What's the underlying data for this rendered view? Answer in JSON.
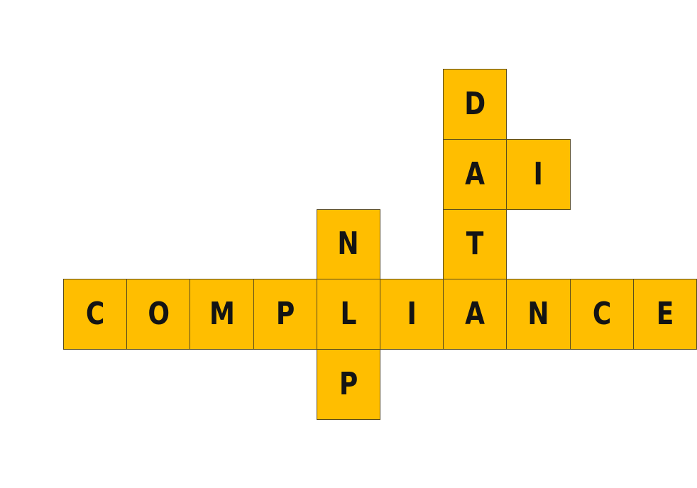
{
  "puzzle": {
    "tile_color": "#FFBE00",
    "border_color": "#5a4a1e",
    "letter_color": "#141414",
    "words": [
      {
        "word": "COMPLIANCE",
        "direction": "across",
        "row": 3,
        "col": 0
      },
      {
        "word": "NLP",
        "direction": "down",
        "row": 2,
        "col": 4
      },
      {
        "word": "DATA",
        "direction": "down",
        "row": 0,
        "col": 6
      },
      {
        "word": "AI",
        "direction": "across",
        "row": 1,
        "col": 6
      }
    ],
    "cells": [
      {
        "row": 0,
        "col": 6,
        "letter": "D"
      },
      {
        "row": 1,
        "col": 6,
        "letter": "A"
      },
      {
        "row": 1,
        "col": 7,
        "letter": "I"
      },
      {
        "row": 2,
        "col": 4,
        "letter": "N"
      },
      {
        "row": 2,
        "col": 6,
        "letter": "T"
      },
      {
        "row": 3,
        "col": 0,
        "letter": "C"
      },
      {
        "row": 3,
        "col": 1,
        "letter": "O"
      },
      {
        "row": 3,
        "col": 2,
        "letter": "M"
      },
      {
        "row": 3,
        "col": 3,
        "letter": "P"
      },
      {
        "row": 3,
        "col": 4,
        "letter": "L"
      },
      {
        "row": 3,
        "col": 5,
        "letter": "I"
      },
      {
        "row": 3,
        "col": 6,
        "letter": "A"
      },
      {
        "row": 3,
        "col": 7,
        "letter": "N"
      },
      {
        "row": 3,
        "col": 8,
        "letter": "C"
      },
      {
        "row": 3,
        "col": 9,
        "letter": "E"
      },
      {
        "row": 4,
        "col": 4,
        "letter": "P"
      }
    ]
  }
}
